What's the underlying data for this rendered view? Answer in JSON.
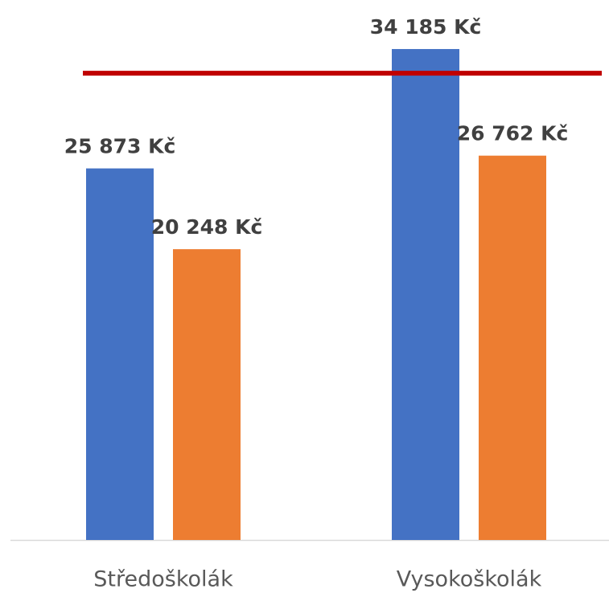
{
  "chart_data": {
    "type": "bar",
    "categories": [
      "Středoškolák",
      "Vysokoškolák"
    ],
    "series": [
      {
        "color": "#4472c4",
        "values": [
          25873,
          34185
        ],
        "value_labels": [
          "25 873 Kč",
          "34 185 Kč"
        ]
      },
      {
        "color": "#ed7d31",
        "values": [
          20248,
          26762
        ],
        "value_labels": [
          "20 248 Kč",
          "26 762 Kč"
        ]
      }
    ],
    "ylim": [
      0,
      37600
    ],
    "reference_line": {
      "value": 32500,
      "color": "#c00000"
    }
  }
}
